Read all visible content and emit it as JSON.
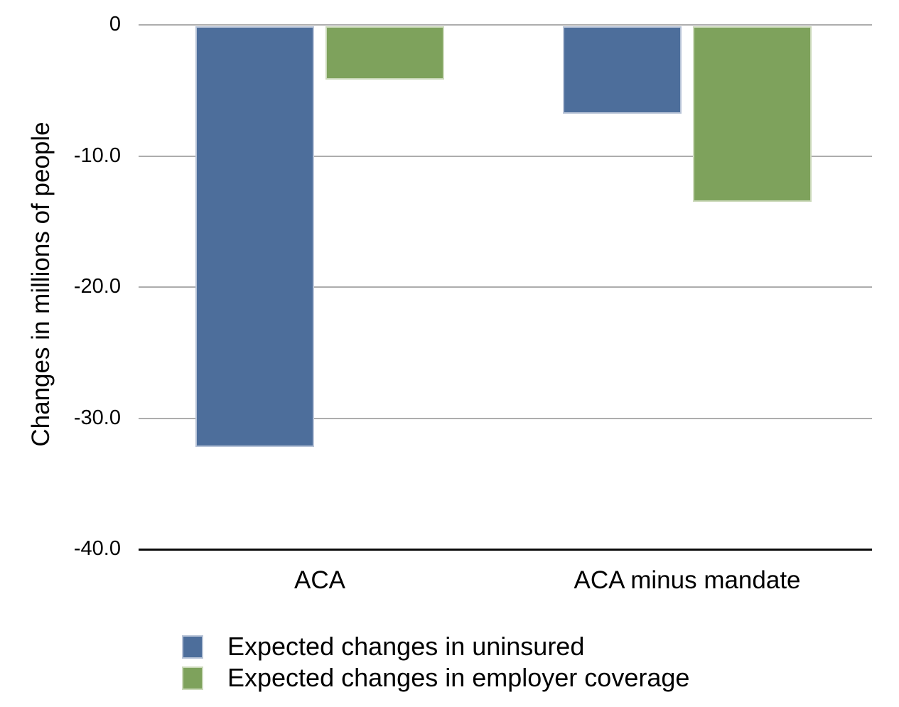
{
  "chart_data": {
    "type": "bar",
    "categories": [
      "ACA",
      "ACA minus mandate"
    ],
    "series": [
      {
        "name": "Expected changes in uninsured",
        "color": "#4d6e9b",
        "border_color": "#b7c3d7",
        "values": [
          -32.2,
          -6.8
        ]
      },
      {
        "name": "Expected changes in employer coverage",
        "color": "#7ea25c",
        "border_color": "#cbd9ba",
        "values": [
          -4.2,
          -13.5
        ]
      }
    ],
    "title": "",
    "xlabel": "",
    "ylabel": "Changes in millions of people",
    "ylim": [
      -40,
      0
    ],
    "yticks": [
      0,
      -10,
      -20,
      -30,
      -40
    ],
    "ytick_labels": [
      "0",
      "-10.0",
      "-20.0",
      "-30.0",
      "-40.0"
    ],
    "grid": true,
    "legend_position": "bottom-left",
    "colors": {
      "gridline": "#adadad",
      "axis_line": "#0a0a0a",
      "text": "#000000",
      "background": "#ffffff"
    }
  }
}
